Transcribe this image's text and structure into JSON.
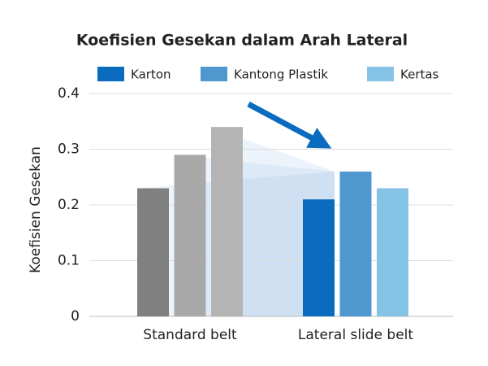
{
  "chart_data": {
    "type": "bar",
    "title": "Koefisien Gesekan dalam Arah Lateral",
    "ylabel": "Koefisien Gesekan",
    "categories": [
      "Standard belt",
      "Lateral slide belt"
    ],
    "series": [
      {
        "name": "Karton",
        "color": "#0b6bbf",
        "bar_colors": [
          "#808080",
          "#0b6bbf"
        ],
        "values": [
          0.23,
          0.21
        ]
      },
      {
        "name": "Kantong Plastik",
        "color": "#4f97cf",
        "bar_colors": [
          "#a9a9a9",
          "#4f97cf"
        ],
        "values": [
          0.29,
          0.26
        ]
      },
      {
        "name": "Kertas",
        "color": "#85c3e6",
        "bar_colors": [
          "#b4b4b4",
          "#85c3e6"
        ],
        "values": [
          0.34,
          0.23
        ]
      }
    ],
    "ylim": [
      0,
      0.4
    ],
    "yticks": [
      0,
      0.1,
      0.2,
      0.3,
      0.4
    ],
    "grid": true
  }
}
